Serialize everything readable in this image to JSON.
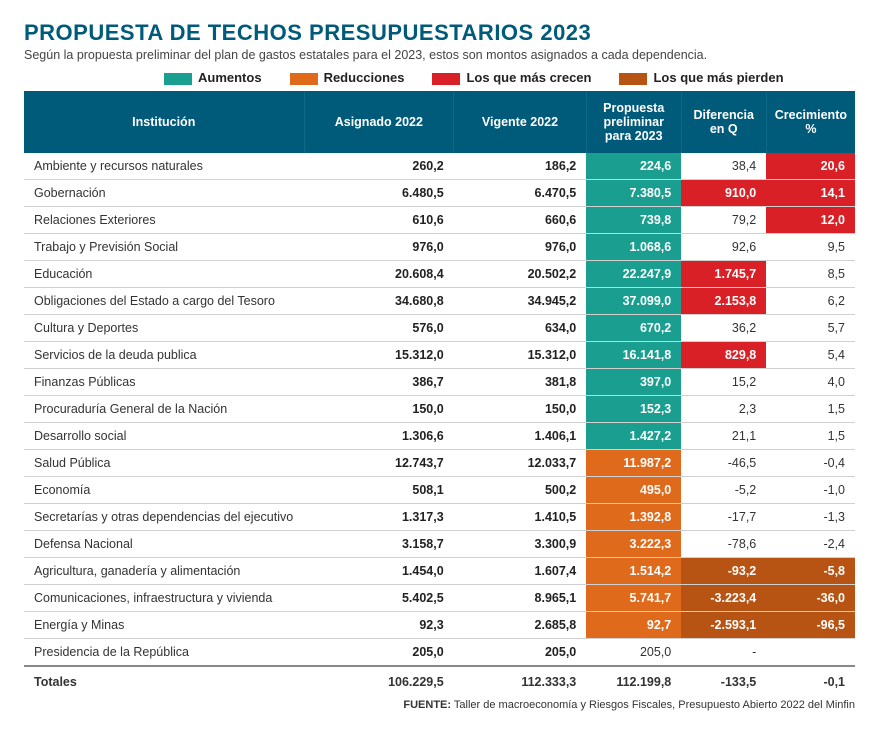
{
  "title": "PROPUESTA DE TECHOS PRESUPUESTARIOS 2023",
  "subtitle": "Según la propuesta preliminar del plan de gastos estatales para el 2023, estos son montos asignados a cada dependencia.",
  "legend": {
    "aumentos": "Aumentos",
    "reducciones": "Reducciones",
    "crecen": "Los que más crecen",
    "pierden": "Los que más pierden"
  },
  "colors": {
    "header_bg": "#005a7a",
    "teal": "#1a9e8f",
    "orange": "#e06a1c",
    "red": "#d92027",
    "brown": "#b85413"
  },
  "columns": [
    "Institución",
    "Asignado 2022",
    "Vigente 2022",
    "Propuesta preliminar para 2023",
    "Diferencia en Q",
    "Crecimiento %"
  ],
  "rows": [
    {
      "inst": "Ambiente y recursos naturales",
      "asig": "260,2",
      "vig": "186,2",
      "prop": "224,6",
      "prop_cls": "hl-teal",
      "diff": "38,4",
      "diff_cls": "",
      "crec": "20,6",
      "crec_cls": "hl-red"
    },
    {
      "inst": "Gobernación",
      "asig": "6.480,5",
      "vig": "6.470,5",
      "prop": "7.380,5",
      "prop_cls": "hl-teal",
      "diff": "910,0",
      "diff_cls": "hl-red",
      "crec": "14,1",
      "crec_cls": "hl-red"
    },
    {
      "inst": "Relaciones Exteriores",
      "asig": "610,6",
      "vig": "660,6",
      "prop": "739,8",
      "prop_cls": "hl-teal",
      "diff": "79,2",
      "diff_cls": "",
      "crec": "12,0",
      "crec_cls": "hl-red"
    },
    {
      "inst": "Trabajo y Previsión Social",
      "asig": "976,0",
      "vig": "976,0",
      "prop": "1.068,6",
      "prop_cls": "hl-teal",
      "diff": "92,6",
      "diff_cls": "",
      "crec": "9,5",
      "crec_cls": ""
    },
    {
      "inst": "Educación",
      "asig": "20.608,4",
      "vig": "20.502,2",
      "prop": "22.247,9",
      "prop_cls": "hl-teal",
      "diff": "1.745,7",
      "diff_cls": "hl-red",
      "crec": "8,5",
      "crec_cls": ""
    },
    {
      "inst": "Obligaciones del Estado a cargo del Tesoro",
      "asig": "34.680,8",
      "vig": "34.945,2",
      "prop": "37.099,0",
      "prop_cls": "hl-teal",
      "diff": "2.153,8",
      "diff_cls": "hl-red",
      "crec": "6,2",
      "crec_cls": ""
    },
    {
      "inst": "Cultura y Deportes",
      "asig": "576,0",
      "vig": "634,0",
      "prop": "670,2",
      "prop_cls": "hl-teal",
      "diff": "36,2",
      "diff_cls": "",
      "crec": "5,7",
      "crec_cls": ""
    },
    {
      "inst": "Servicios de la deuda publica",
      "asig": "15.312,0",
      "vig": "15.312,0",
      "prop": "16.141,8",
      "prop_cls": "hl-teal",
      "diff": "829,8",
      "diff_cls": "hl-red",
      "crec": "5,4",
      "crec_cls": ""
    },
    {
      "inst": "Finanzas Públicas",
      "asig": "386,7",
      "vig": "381,8",
      "prop": "397,0",
      "prop_cls": "hl-teal",
      "diff": "15,2",
      "diff_cls": "",
      "crec": "4,0",
      "crec_cls": ""
    },
    {
      "inst": "Procuraduría General de la Nación",
      "asig": "150,0",
      "vig": "150,0",
      "prop": "152,3",
      "prop_cls": "hl-teal",
      "diff": "2,3",
      "diff_cls": "",
      "crec": "1,5",
      "crec_cls": ""
    },
    {
      "inst": "Desarrollo social",
      "asig": "1.306,6",
      "vig": "1.406,1",
      "prop": "1.427,2",
      "prop_cls": "hl-teal",
      "diff": "21,1",
      "diff_cls": "",
      "crec": "1,5",
      "crec_cls": ""
    },
    {
      "inst": "Salud Pública",
      "asig": "12.743,7",
      "vig": "12.033,7",
      "prop": "11.987,2",
      "prop_cls": "hl-orange",
      "diff": "-46,5",
      "diff_cls": "",
      "crec": "-0,4",
      "crec_cls": ""
    },
    {
      "inst": "Economía",
      "asig": "508,1",
      "vig": "500,2",
      "prop": "495,0",
      "prop_cls": "hl-orange",
      "diff": "-5,2",
      "diff_cls": "",
      "crec": "-1,0",
      "crec_cls": ""
    },
    {
      "inst": "Secretarías y otras dependencias del ejecutivo",
      "asig": "1.317,3",
      "vig": "1.410,5",
      "prop": "1.392,8",
      "prop_cls": "hl-orange",
      "diff": "-17,7",
      "diff_cls": "",
      "crec": "-1,3",
      "crec_cls": ""
    },
    {
      "inst": "Defensa Nacional",
      "asig": "3.158,7",
      "vig": "3.300,9",
      "prop": "3.222,3",
      "prop_cls": "hl-orange",
      "diff": "-78,6",
      "diff_cls": "",
      "crec": "-2,4",
      "crec_cls": ""
    },
    {
      "inst": "Agricultura, ganadería y alimentación",
      "asig": "1.454,0",
      "vig": "1.607,4",
      "prop": "1.514,2",
      "prop_cls": "hl-orange",
      "diff": "-93,2",
      "diff_cls": "hl-brown",
      "crec": "-5,8",
      "crec_cls": "hl-brown"
    },
    {
      "inst": "Comunicaciones, infraestructura y vivienda",
      "asig": "5.402,5",
      "vig": "8.965,1",
      "prop": "5.741,7",
      "prop_cls": "hl-orange",
      "diff": "-3.223,4",
      "diff_cls": "hl-brown",
      "crec": "-36,0",
      "crec_cls": "hl-brown"
    },
    {
      "inst": "Energía y Minas",
      "asig": "92,3",
      "vig": "2.685,8",
      "prop": "92,7",
      "prop_cls": "hl-orange",
      "diff": "-2.593,1",
      "diff_cls": "hl-brown",
      "crec": "-96,5",
      "crec_cls": "hl-brown"
    },
    {
      "inst": "Presidencia de la República",
      "asig": "205,0",
      "vig": "205,0",
      "prop": "205,0",
      "prop_cls": "",
      "diff": "-",
      "diff_cls": "",
      "crec": "",
      "crec_cls": ""
    }
  ],
  "totals": {
    "inst": "Totales",
    "asig": "106.229,5",
    "vig": "112.333,3",
    "prop": "112.199,8",
    "diff": "-133,5",
    "crec": "-0,1"
  },
  "source_label": "FUENTE:",
  "source_text": " Taller de macroeconomía y Riesgos Fiscales, Presupuesto Abierto 2022 del Minfin"
}
